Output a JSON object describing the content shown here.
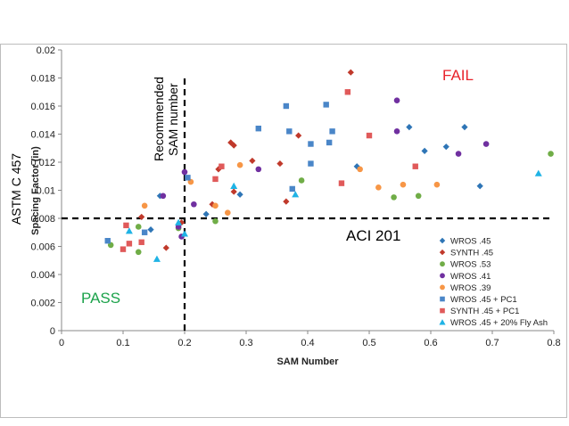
{
  "chart_data": {
    "type": "scatter",
    "xlabel": "SAM Number",
    "ylabel": "ASTM C 457",
    "ylabel_sub": "Spacing Factor (in)",
    "xlim": [
      0,
      0.8
    ],
    "ylim": [
      0,
      0.02
    ],
    "x_ticks": [
      "0",
      "0.1",
      "0.2",
      "0.3",
      "0.4",
      "0.5",
      "0.6",
      "0.7",
      "0.8"
    ],
    "y_ticks": [
      "0",
      "0.002",
      "0.004",
      "0.006",
      "0.008",
      "0.01",
      "0.012",
      "0.014",
      "0.016",
      "0.018",
      "0.02"
    ],
    "grid": false,
    "legend_position": "bottom-right",
    "annotations": {
      "fail": "FAIL",
      "pass": "PASS",
      "aci": "ACI 201",
      "recommended_line1": "Recommended",
      "recommended_line2": "SAM number"
    },
    "threshold_lines": {
      "x": 0.2,
      "y": 0.008
    },
    "series": [
      {
        "name": "WROS .45",
        "marker": "diamond",
        "color": "#2e75b6",
        "points": [
          [
            0.145,
            0.0072
          ],
          [
            0.16,
            0.0096
          ],
          [
            0.235,
            0.0083
          ],
          [
            0.29,
            0.0097
          ],
          [
            0.48,
            0.0117
          ],
          [
            0.565,
            0.0145
          ],
          [
            0.59,
            0.0128
          ],
          [
            0.625,
            0.0131
          ],
          [
            0.655,
            0.0145
          ],
          [
            0.68,
            0.0103
          ]
        ]
      },
      {
        "name": "SYNTH .45",
        "marker": "diamond",
        "color": "#c0392b",
        "points": [
          [
            0.13,
            0.0081
          ],
          [
            0.17,
            0.0059
          ],
          [
            0.195,
            0.0077
          ],
          [
            0.245,
            0.009
          ],
          [
            0.255,
            0.0115
          ],
          [
            0.275,
            0.0134
          ],
          [
            0.28,
            0.0132
          ],
          [
            0.28,
            0.0099
          ],
          [
            0.31,
            0.0121
          ],
          [
            0.355,
            0.0119
          ],
          [
            0.365,
            0.0092
          ],
          [
            0.385,
            0.0139
          ],
          [
            0.47,
            0.0184
          ]
        ]
      },
      {
        "name": "WROS .53",
        "marker": "circle",
        "color": "#70ad47",
        "points": [
          [
            0.08,
            0.0061
          ],
          [
            0.125,
            0.0056
          ],
          [
            0.125,
            0.0074
          ],
          [
            0.19,
            0.0073
          ],
          [
            0.25,
            0.0078
          ],
          [
            0.39,
            0.0107
          ],
          [
            0.54,
            0.0095
          ],
          [
            0.58,
            0.0096
          ],
          [
            0.795,
            0.0126
          ]
        ]
      },
      {
        "name": "WROS .41",
        "marker": "circle",
        "color": "#7030a0",
        "points": [
          [
            0.165,
            0.0096
          ],
          [
            0.19,
            0.0074
          ],
          [
            0.195,
            0.0067
          ],
          [
            0.2,
            0.0113
          ],
          [
            0.215,
            0.009
          ],
          [
            0.32,
            0.0115
          ],
          [
            0.545,
            0.0164
          ],
          [
            0.545,
            0.0142
          ],
          [
            0.645,
            0.0126
          ],
          [
            0.69,
            0.0133
          ]
        ]
      },
      {
        "name": "WROS .39",
        "marker": "circle",
        "color": "#f79646",
        "points": [
          [
            0.135,
            0.0089
          ],
          [
            0.21,
            0.0106
          ],
          [
            0.25,
            0.0089
          ],
          [
            0.27,
            0.0084
          ],
          [
            0.29,
            0.0118
          ],
          [
            0.485,
            0.0115
          ],
          [
            0.515,
            0.0102
          ],
          [
            0.555,
            0.0104
          ],
          [
            0.61,
            0.0104
          ]
        ]
      },
      {
        "name": "WROS .45 + PC1",
        "marker": "square",
        "color": "#4a86c8",
        "points": [
          [
            0.075,
            0.0064
          ],
          [
            0.135,
            0.007
          ],
          [
            0.205,
            0.0109
          ],
          [
            0.32,
            0.0144
          ],
          [
            0.365,
            0.016
          ],
          [
            0.37,
            0.0142
          ],
          [
            0.375,
            0.0101
          ],
          [
            0.405,
            0.0119
          ],
          [
            0.405,
            0.0133
          ],
          [
            0.43,
            0.0161
          ],
          [
            0.435,
            0.0134
          ],
          [
            0.44,
            0.0142
          ]
        ]
      },
      {
        "name": "SYNTH .45 + PC1",
        "marker": "square",
        "color": "#e05a5a",
        "points": [
          [
            0.1,
            0.0058
          ],
          [
            0.105,
            0.0075
          ],
          [
            0.11,
            0.0062
          ],
          [
            0.13,
            0.0063
          ],
          [
            0.25,
            0.0108
          ],
          [
            0.26,
            0.0117
          ],
          [
            0.455,
            0.0105
          ],
          [
            0.465,
            0.017
          ],
          [
            0.5,
            0.0139
          ],
          [
            0.575,
            0.0117
          ]
        ]
      },
      {
        "name": "WROS .45 + 20% Fly Ash",
        "marker": "triangle",
        "color": "#1fb3e5",
        "points": [
          [
            0.11,
            0.0071
          ],
          [
            0.155,
            0.0051
          ],
          [
            0.19,
            0.0077
          ],
          [
            0.2,
            0.0069
          ],
          [
            0.28,
            0.0103
          ],
          [
            0.38,
            0.0097
          ],
          [
            0.775,
            0.0112
          ]
        ]
      }
    ]
  }
}
